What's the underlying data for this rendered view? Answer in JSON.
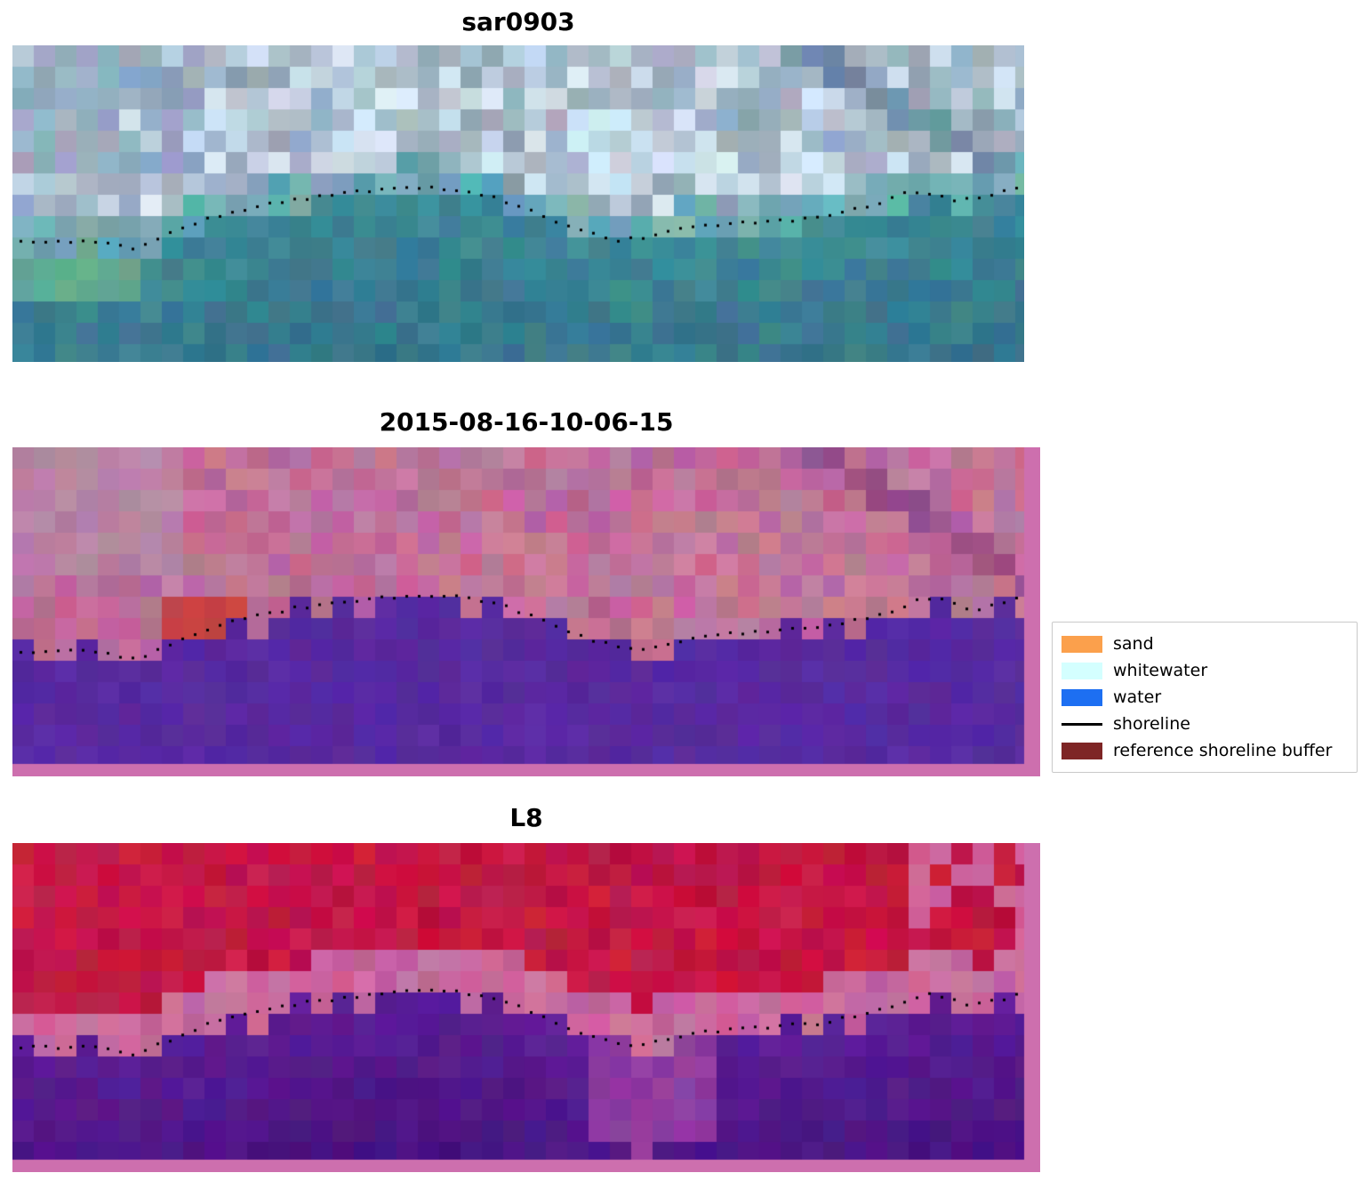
{
  "figure": {
    "panels": [
      {
        "id": "sar",
        "title": "sar0903"
      },
      {
        "id": "classified",
        "title": "2015-08-16-10-06-15"
      },
      {
        "id": "l8",
        "title": "L8"
      }
    ]
  },
  "legend": {
    "items": [
      {
        "label": "sand",
        "type": "patch",
        "color": "#FBA04C"
      },
      {
        "label": "whitewater",
        "type": "patch",
        "color": "#D4FFFF"
      },
      {
        "label": "water",
        "type": "patch",
        "color": "#1D6FF2"
      },
      {
        "label": "shoreline",
        "type": "line",
        "color": "#000000"
      },
      {
        "label": "reference shoreline buffer",
        "type": "patch",
        "color": "#7E2525"
      }
    ]
  },
  "chart_data": {
    "type": "heatmap",
    "subtype": "satellite-image-classification-panels",
    "panels": [
      {
        "title": "sar0903",
        "description": "pixelated RGB satellite crop with dotted detected shoreline",
        "palette": {
          "upper_clouds": "#D2DCE4",
          "upper_blue_patch": "#96AAC3",
          "diagonal_streak": "#6E8FA8",
          "nearshore_teal": "#3E8A96",
          "deep_water": "#3A7490",
          "green_tint": "#5FAE96"
        }
      },
      {
        "title": "2015-08-16-10-06-15",
        "description": "classification overlay: magenta land/cloud, purple water mask, red buffer patch, pink frame",
        "palette": {
          "upper_pink": "#C07099",
          "water_purple": "#582AA0",
          "red_patch": "#C64248",
          "border_pink": "#CD6FAE",
          "diagonal_streak": "#96508A"
        }
      },
      {
        "title": "L8",
        "description": "Landsat-8 classified crop: crimson upper, purple water, pink transition band, pink frame",
        "palette": {
          "upper_red": "#C41744",
          "transition_pink": "#C86A9C",
          "water_purple": "#5C1F96",
          "deep_purple": "#46127E",
          "light_patch": "#8F3CA0",
          "border_pink": "#CD6FAE"
        }
      }
    ],
    "shoreline_points": [
      [
        0.0,
        0.615
      ],
      [
        0.04,
        0.618
      ],
      [
        0.075,
        0.612
      ],
      [
        0.12,
        0.64
      ],
      [
        0.165,
        0.575
      ],
      [
        0.21,
        0.525
      ],
      [
        0.27,
        0.487
      ],
      [
        0.34,
        0.458
      ],
      [
        0.4,
        0.443
      ],
      [
        0.44,
        0.452
      ],
      [
        0.47,
        0.47
      ],
      [
        0.5,
        0.505
      ],
      [
        0.53,
        0.545
      ],
      [
        0.565,
        0.585
      ],
      [
        0.6,
        0.612
      ],
      [
        0.625,
        0.6
      ],
      [
        0.655,
        0.578
      ],
      [
        0.69,
        0.565
      ],
      [
        0.72,
        0.558
      ],
      [
        0.78,
        0.545
      ],
      [
        0.82,
        0.52
      ],
      [
        0.85,
        0.498
      ],
      [
        0.885,
        0.455
      ],
      [
        0.91,
        0.463
      ],
      [
        0.93,
        0.492
      ],
      [
        0.95,
        0.478
      ],
      [
        0.965,
        0.47
      ],
      [
        0.985,
        0.442
      ],
      [
        1.0,
        0.445
      ]
    ],
    "legend_entries": [
      "sand",
      "whitewater",
      "water",
      "shoreline",
      "reference shoreline buffer"
    ],
    "legend_position": "right-of-middle-panel",
    "grid": false
  }
}
